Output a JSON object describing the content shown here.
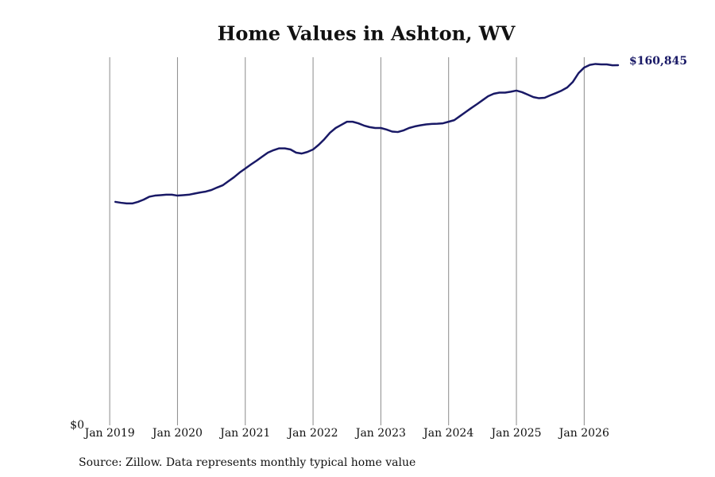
{
  "chart_data": {
    "type": "line",
    "title": "Home Values in Ashton, WV",
    "source": "Source: Zillow. Data represents monthly typical home value",
    "color": "#191966",
    "x": [
      "2019-02",
      "2019-03",
      "2019-04",
      "2019-05",
      "2019-06",
      "2019-07",
      "2019-08",
      "2019-09",
      "2019-10",
      "2019-11",
      "2019-12",
      "2020-01",
      "2020-02",
      "2020-03",
      "2020-04",
      "2020-05",
      "2020-06",
      "2020-07",
      "2020-08",
      "2020-09",
      "2020-10",
      "2020-11",
      "2020-12",
      "2021-01",
      "2021-02",
      "2021-03",
      "2021-04",
      "2021-05",
      "2021-06",
      "2021-07",
      "2021-08",
      "2021-09",
      "2021-10",
      "2021-11",
      "2021-12",
      "2022-01",
      "2022-02",
      "2022-03",
      "2022-04",
      "2022-05",
      "2022-06",
      "2022-07",
      "2022-08",
      "2022-09",
      "2022-10",
      "2022-11",
      "2022-12",
      "2023-01",
      "2023-02",
      "2023-03",
      "2023-04",
      "2023-05",
      "2023-06",
      "2023-07",
      "2023-08",
      "2023-09",
      "2023-10",
      "2023-11",
      "2023-12",
      "2024-01",
      "2024-02",
      "2024-03",
      "2024-04",
      "2024-05",
      "2024-06",
      "2024-07",
      "2024-08",
      "2024-09",
      "2024-10",
      "2024-11",
      "2024-12",
      "2025-01",
      "2025-02",
      "2025-03",
      "2025-04",
      "2025-05",
      "2025-06",
      "2025-07",
      "2025-08",
      "2025-09",
      "2025-10",
      "2025-11",
      "2025-12",
      "2026-01",
      "2026-02",
      "2026-03",
      "2026-04",
      "2026-05",
      "2026-06",
      "2026-07"
    ],
    "values": [
      99800,
      99400,
      99100,
      99100,
      99800,
      100800,
      102100,
      102600,
      102800,
      103000,
      103000,
      102600,
      102800,
      103000,
      103500,
      104000,
      104400,
      105100,
      106200,
      107200,
      109000,
      110800,
      112900,
      114700,
      116500,
      118200,
      120000,
      121800,
      122900,
      123700,
      123700,
      123200,
      121800,
      121400,
      122100,
      123200,
      125300,
      127800,
      130700,
      132800,
      134200,
      135600,
      135600,
      134900,
      133900,
      133200,
      132800,
      132800,
      132100,
      131200,
      131000,
      131700,
      132800,
      133500,
      134000,
      134400,
      134600,
      134700,
      134900,
      135600,
      136300,
      138100,
      139900,
      141700,
      143400,
      145200,
      147000,
      148100,
      148600,
      148600,
      149000,
      149500,
      148800,
      147700,
      146600,
      146100,
      146300,
      147400,
      148400,
      149500,
      150900,
      153400,
      157300,
      159800,
      161000,
      161400,
      161200,
      161200,
      160800,
      160845
    ],
    "value_labels": [
      null,
      null,
      null,
      null,
      null,
      null,
      null,
      null,
      null,
      null,
      null,
      null,
      null,
      null,
      null,
      null,
      null,
      null,
      null,
      null,
      null,
      null,
      null,
      null,
      null,
      null,
      null,
      null,
      null,
      null,
      null,
      null,
      null,
      null,
      null,
      null,
      null,
      null,
      null,
      null,
      null,
      null,
      null,
      null,
      null,
      null,
      null,
      null,
      null,
      null,
      null,
      null,
      null,
      null,
      null,
      null,
      null,
      null,
      null,
      null,
      null,
      null,
      null,
      null,
      null,
      null,
      null,
      null,
      null,
      null,
      null,
      null,
      null,
      null,
      null,
      null,
      null,
      null,
      null,
      null,
      null,
      null,
      null,
      null,
      null,
      null,
      null,
      null,
      null,
      "$160,845"
    ],
    "xlim": [
      "2018-12",
      "2026-07"
    ],
    "xticks": [
      {
        "value": "2019-01",
        "label": "Jan 2019"
      },
      {
        "value": "2020-01",
        "label": "Jan 2020"
      },
      {
        "value": "2021-01",
        "label": "Jan 2021"
      },
      {
        "value": "2022-01",
        "label": "Jan 2022"
      },
      {
        "value": "2023-01",
        "label": "Jan 2023"
      },
      {
        "value": "2024-01",
        "label": "Jan 2024"
      },
      {
        "value": "2025-01",
        "label": "Jan 2025"
      },
      {
        "value": "2026-01",
        "label": "Jan 2026"
      }
    ],
    "ylim": [
      0,
      164400
    ],
    "yticks": [
      {
        "value": 0,
        "label": "$0"
      }
    ],
    "grid": true
  }
}
